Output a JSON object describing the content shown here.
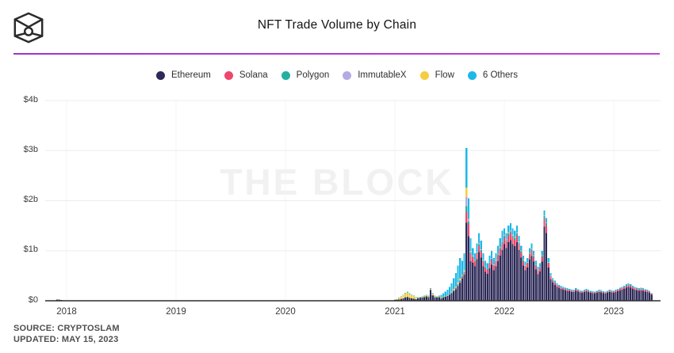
{
  "header": {
    "title": "NFT Trade Volume by Chain",
    "logo": "the-block-cube-logo"
  },
  "divider_color": "#b13ad6",
  "legend": {
    "items": [
      {
        "label": "Ethereum",
        "color": "#2d2a58"
      },
      {
        "label": "Solana",
        "color": "#ee476d"
      },
      {
        "label": "Polygon",
        "color": "#23b0a0"
      },
      {
        "label": "ImmutableX",
        "color": "#b4abe2"
      },
      {
        "label": "Flow",
        "color": "#f5cd42"
      },
      {
        "label": "6 Others",
        "color": "#1cb8e8"
      }
    ]
  },
  "watermark": "THE BLOCK",
  "footer": {
    "source": "SOURCE: CRYPTOSLAM",
    "updated": "UPDATED: MAY 15, 2023"
  },
  "chart_data": {
    "type": "stacked-bar",
    "title": "NFT Trade Volume by Chain",
    "unit": "USD billions per week",
    "ylim": [
      0,
      4
    ],
    "yticks": [
      0,
      1,
      2,
      3,
      4
    ],
    "ytick_labels": [
      "$0",
      "$1b",
      "$2b",
      "$3b",
      "$4b"
    ],
    "xtick_years": [
      2018,
      2019,
      2020,
      2021,
      2022,
      2023
    ],
    "xtick_labels": [
      "2018",
      "2019",
      "2020",
      "2021",
      "2022",
      "2023"
    ],
    "grid": "horizontal-light",
    "legend_position": "top-center",
    "series": [
      {
        "name": "Ethereum",
        "color": "#2d2a58"
      },
      {
        "name": "Solana",
        "color": "#ee476d"
      },
      {
        "name": "Polygon",
        "color": "#23b0a0"
      },
      {
        "name": "ImmutableX",
        "color": "#b4abe2"
      },
      {
        "name": "Flow",
        "color": "#f5cd42"
      },
      {
        "name": "6 Others",
        "color": "#1cb8e8"
      }
    ],
    "profiles": {
      "pre": [
        1,
        0,
        0,
        0,
        0,
        0
      ],
      "ethLow": [
        0.85,
        0,
        0.05,
        0,
        0.05,
        0.05
      ],
      "flowEra": [
        0.38,
        0.02,
        0.02,
        0,
        0.5,
        0.08
      ],
      "ethFlow": [
        0.7,
        0.02,
        0.03,
        0,
        0.15,
        0.1
      ],
      "ethHigh": [
        0.85,
        0.02,
        0.02,
        0.01,
        0.04,
        0.06
      ],
      "cyanRise": [
        0.42,
        0.02,
        0.03,
        0.01,
        0.04,
        0.48
      ],
      "cyanMid": [
        0.55,
        0.04,
        0.02,
        0.01,
        0.02,
        0.36
      ],
      "spike": [
        0.51,
        0.07,
        0.04,
        0.06,
        0.06,
        0.26
      ],
      "postSpike": [
        0.63,
        0.12,
        0.02,
        0.02,
        0.01,
        0.2
      ],
      "late2021": [
        0.72,
        0.1,
        0.02,
        0.01,
        0.005,
        0.145
      ],
      "y2022": [
        0.78,
        0.09,
        0.025,
        0.01,
        0.005,
        0.09
      ],
      "maySpike": [
        0.82,
        0.09,
        0.03,
        0.01,
        0,
        0.05
      ],
      "bear": [
        0.8,
        0.08,
        0.03,
        0.01,
        0.005,
        0.075
      ],
      "y2023": [
        0.8,
        0.09,
        0.04,
        0.01,
        0,
        0.06
      ]
    },
    "bars": [
      [
        2017.913,
        0.025,
        "pre"
      ],
      [
        2017.932,
        0.02,
        "pre"
      ],
      [
        2017.951,
        0.015,
        "pre"
      ],
      [
        2021.0,
        0.02,
        "ethLow"
      ],
      [
        2021.019,
        0.03,
        "ethLow"
      ],
      [
        2021.038,
        0.06,
        "flowEra"
      ],
      [
        2021.058,
        0.09,
        "flowEra"
      ],
      [
        2021.077,
        0.12,
        "flowEra"
      ],
      [
        2021.096,
        0.16,
        "flowEra"
      ],
      [
        2021.115,
        0.18,
        "flowEra"
      ],
      [
        2021.135,
        0.15,
        "flowEra"
      ],
      [
        2021.154,
        0.12,
        "flowEra"
      ],
      [
        2021.173,
        0.1,
        "flowEra"
      ],
      [
        2021.192,
        0.08,
        "flowEra"
      ],
      [
        2021.212,
        0.07,
        "ethFlow"
      ],
      [
        2021.231,
        0.08,
        "ethFlow"
      ],
      [
        2021.25,
        0.09,
        "ethFlow"
      ],
      [
        2021.269,
        0.1,
        "ethFlow"
      ],
      [
        2021.288,
        0.12,
        "ethFlow"
      ],
      [
        2021.308,
        0.1,
        "ethFlow"
      ],
      [
        2021.327,
        0.25,
        "ethHigh"
      ],
      [
        2021.346,
        0.15,
        "ethFlow"
      ],
      [
        2021.365,
        0.1,
        "ethFlow"
      ],
      [
        2021.385,
        0.09,
        "ethFlow"
      ],
      [
        2021.404,
        0.1,
        "ethFlow"
      ],
      [
        2021.423,
        0.12,
        "cyanRise"
      ],
      [
        2021.442,
        0.15,
        "cyanRise"
      ],
      [
        2021.462,
        0.18,
        "cyanRise"
      ],
      [
        2021.481,
        0.22,
        "cyanRise"
      ],
      [
        2021.5,
        0.28,
        "cyanRise"
      ],
      [
        2021.519,
        0.35,
        "cyanRise"
      ],
      [
        2021.538,
        0.45,
        "cyanRise"
      ],
      [
        2021.558,
        0.55,
        "cyanRise"
      ],
      [
        2021.577,
        0.7,
        "cyanRise"
      ],
      [
        2021.596,
        0.85,
        "cyanRise"
      ],
      [
        2021.615,
        0.8,
        "cyanMid"
      ],
      [
        2021.635,
        0.95,
        "cyanMid"
      ],
      [
        2021.654,
        3.05,
        "spike"
      ],
      [
        2021.673,
        2.05,
        "postSpike"
      ],
      [
        2021.692,
        1.25,
        "postSpike"
      ],
      [
        2021.712,
        1.05,
        "late2021"
      ],
      [
        2021.731,
        0.95,
        "late2021"
      ],
      [
        2021.75,
        1.15,
        "late2021"
      ],
      [
        2021.769,
        1.35,
        "late2021"
      ],
      [
        2021.788,
        1.2,
        "late2021"
      ],
      [
        2021.808,
        0.95,
        "late2021"
      ],
      [
        2021.827,
        0.8,
        "late2021"
      ],
      [
        2021.846,
        0.75,
        "late2021"
      ],
      [
        2021.865,
        0.9,
        "late2021"
      ],
      [
        2021.885,
        1.0,
        "late2021"
      ],
      [
        2021.904,
        0.85,
        "late2021"
      ],
      [
        2021.923,
        0.95,
        "late2021"
      ],
      [
        2021.942,
        1.1,
        "late2021"
      ],
      [
        2021.962,
        1.25,
        "late2021"
      ],
      [
        2021.981,
        1.4,
        "late2021"
      ],
      [
        2022.0,
        1.45,
        "y2022"
      ],
      [
        2022.019,
        1.35,
        "y2022"
      ],
      [
        2022.038,
        1.5,
        "y2022"
      ],
      [
        2022.058,
        1.55,
        "y2022"
      ],
      [
        2022.077,
        1.45,
        "y2022"
      ],
      [
        2022.096,
        1.4,
        "y2022"
      ],
      [
        2022.115,
        1.5,
        "y2022"
      ],
      [
        2022.135,
        1.3,
        "y2022"
      ],
      [
        2022.154,
        1.1,
        "y2022"
      ],
      [
        2022.173,
        0.9,
        "y2022"
      ],
      [
        2022.192,
        0.78,
        "y2022"
      ],
      [
        2022.212,
        0.85,
        "y2022"
      ],
      [
        2022.231,
        1.05,
        "y2022"
      ],
      [
        2022.25,
        1.15,
        "y2022"
      ],
      [
        2022.269,
        1.0,
        "y2022"
      ],
      [
        2022.288,
        0.8,
        "y2022"
      ],
      [
        2022.308,
        0.68,
        "y2022"
      ],
      [
        2022.327,
        0.75,
        "y2022"
      ],
      [
        2022.346,
        1.0,
        "y2022"
      ],
      [
        2022.365,
        1.8,
        "maySpike"
      ],
      [
        2022.385,
        1.65,
        "maySpike"
      ],
      [
        2022.404,
        0.85,
        "y2022"
      ],
      [
        2022.423,
        0.55,
        "y2022"
      ],
      [
        2022.442,
        0.45,
        "bear"
      ],
      [
        2022.462,
        0.4,
        "bear"
      ],
      [
        2022.481,
        0.35,
        "bear"
      ],
      [
        2022.5,
        0.32,
        "bear"
      ],
      [
        2022.519,
        0.3,
        "bear"
      ],
      [
        2022.538,
        0.28,
        "bear"
      ],
      [
        2022.558,
        0.26,
        "bear"
      ],
      [
        2022.577,
        0.25,
        "bear"
      ],
      [
        2022.596,
        0.24,
        "bear"
      ],
      [
        2022.615,
        0.22,
        "bear"
      ],
      [
        2022.635,
        0.22,
        "bear"
      ],
      [
        2022.654,
        0.25,
        "bear"
      ],
      [
        2022.673,
        0.23,
        "bear"
      ],
      [
        2022.692,
        0.21,
        "bear"
      ],
      [
        2022.712,
        0.2,
        "bear"
      ],
      [
        2022.731,
        0.22,
        "bear"
      ],
      [
        2022.75,
        0.24,
        "bear"
      ],
      [
        2022.769,
        0.22,
        "bear"
      ],
      [
        2022.788,
        0.2,
        "bear"
      ],
      [
        2022.808,
        0.19,
        "bear"
      ],
      [
        2022.827,
        0.18,
        "bear"
      ],
      [
        2022.846,
        0.2,
        "bear"
      ],
      [
        2022.865,
        0.22,
        "bear"
      ],
      [
        2022.885,
        0.21,
        "bear"
      ],
      [
        2022.904,
        0.19,
        "bear"
      ],
      [
        2022.923,
        0.18,
        "bear"
      ],
      [
        2022.942,
        0.2,
        "bear"
      ],
      [
        2022.962,
        0.22,
        "bear"
      ],
      [
        2022.981,
        0.21,
        "bear"
      ],
      [
        2023.0,
        0.2,
        "y2023"
      ],
      [
        2023.019,
        0.22,
        "y2023"
      ],
      [
        2023.038,
        0.24,
        "y2023"
      ],
      [
        2023.058,
        0.26,
        "y2023"
      ],
      [
        2023.077,
        0.28,
        "y2023"
      ],
      [
        2023.096,
        0.3,
        "y2023"
      ],
      [
        2023.115,
        0.33,
        "y2023"
      ],
      [
        2023.135,
        0.35,
        "y2023"
      ],
      [
        2023.154,
        0.33,
        "y2023"
      ],
      [
        2023.173,
        0.3,
        "y2023"
      ],
      [
        2023.192,
        0.28,
        "y2023"
      ],
      [
        2023.212,
        0.26,
        "y2023"
      ],
      [
        2023.231,
        0.25,
        "y2023"
      ],
      [
        2023.25,
        0.26,
        "y2023"
      ],
      [
        2023.269,
        0.25,
        "y2023"
      ],
      [
        2023.288,
        0.23,
        "y2023"
      ],
      [
        2023.308,
        0.22,
        "y2023"
      ],
      [
        2023.327,
        0.2,
        "y2023"
      ],
      [
        2023.346,
        0.15,
        "y2023"
      ]
    ]
  }
}
